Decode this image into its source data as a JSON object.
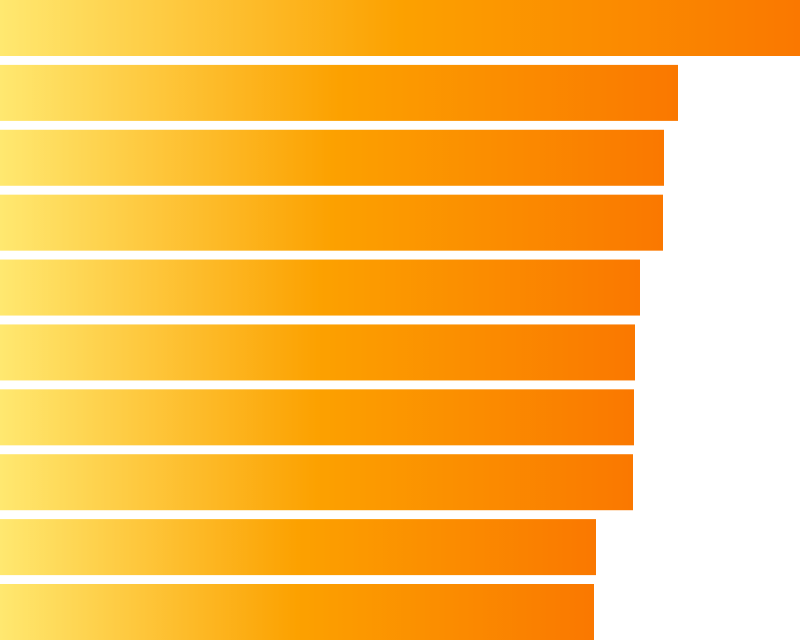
{
  "chart_data": {
    "type": "bar",
    "orientation": "horizontal",
    "values": [
      800,
      678,
      664,
      663,
      640,
      635,
      634,
      633,
      596,
      594
    ],
    "xlim": [
      0,
      800
    ],
    "gradient": [
      "#ffe870",
      "#fca100",
      "#fa7800"
    ]
  }
}
